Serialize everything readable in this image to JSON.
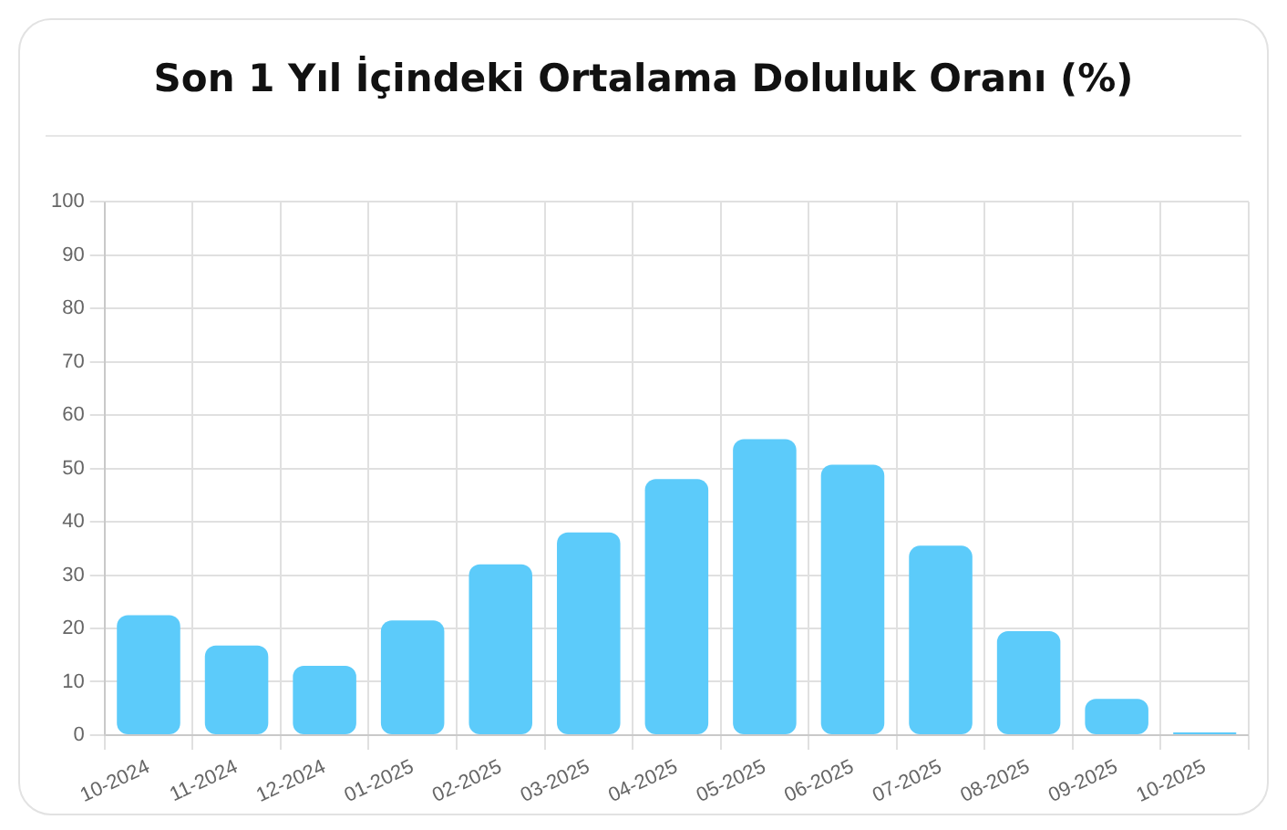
{
  "chart_data": {
    "type": "bar",
    "title": "Son 1 Yıl İçindeki Ortalama Doluluk Oranı (%)",
    "categories": [
      "10-2024",
      "11-2024",
      "12-2024",
      "01-2025",
      "02-2025",
      "03-2025",
      "04-2025",
      "05-2025",
      "06-2025",
      "07-2025",
      "08-2025",
      "09-2025",
      "10-2025"
    ],
    "values": [
      22.5,
      16.8,
      13,
      21.5,
      32,
      38,
      48,
      55.5,
      50.7,
      35.5,
      19.5,
      6.8,
      0.5
    ],
    "color": "#5ccbfa",
    "ylim": [
      0,
      100
    ],
    "yticks": [
      0,
      10,
      20,
      30,
      40,
      50,
      60,
      70,
      80,
      90,
      100
    ],
    "grid": true,
    "legend": false
  }
}
